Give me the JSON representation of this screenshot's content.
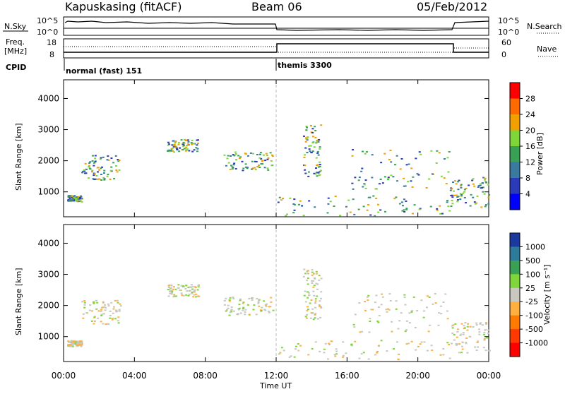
{
  "header": {
    "station": "Kapuskasing (fitACF)",
    "beam": "Beam 06",
    "date": "05/Feb/2012"
  },
  "summary": {
    "nsky_label": "N.Sky",
    "nsearch_label": "N.Search",
    "freq_label": "Freq.",
    "freq_unit": "[MHz]",
    "nave_label": "Nave",
    "cpid_label": "CPID",
    "nsky_ticks": [
      "10^5",
      "10^0"
    ],
    "nsearch_ticks": [
      "10^5",
      "10^0"
    ],
    "freq_ticks": [
      "18",
      "8"
    ],
    "nave_ticks": [
      "60",
      "0"
    ],
    "cpid_modes": [
      {
        "label": "normal (fast) 151",
        "start_hour": 0,
        "end_hour": 12
      },
      {
        "label": "themis 3300",
        "start_hour": 12,
        "end_hour": 24
      }
    ]
  },
  "x_axis": {
    "label": "Time UT",
    "ticks": [
      "00:00",
      "04:00",
      "08:00",
      "12:00",
      "16:00",
      "20:00",
      "00:00"
    ],
    "tick_hours": [
      0,
      4,
      8,
      12,
      16,
      20,
      24
    ]
  },
  "chart_data": [
    {
      "type": "heatmap",
      "name": "power",
      "ylabel": "Slant Range [km]",
      "y_ticks": [
        1000,
        2000,
        3000,
        4000
      ],
      "ylim": [
        200,
        4600
      ],
      "xlim_hours": [
        0,
        24
      ],
      "colorbar": {
        "label": "Power [dB]",
        "tick_labels": [
          "28",
          "24",
          "20",
          "16",
          "12",
          "8",
          "4"
        ],
        "colors": [
          "#ff0000",
          "#ff6a00",
          "#f0a000",
          "#7fd63a",
          "#3aa055",
          "#3a7aa0",
          "#2a3ab8",
          "#0000ff"
        ]
      }
    },
    {
      "type": "heatmap",
      "name": "velocity",
      "ylabel": "Slant Range [km]",
      "y_ticks": [
        1000,
        2000,
        3000,
        4000
      ],
      "ylim": [
        200,
        4600
      ],
      "xlim_hours": [
        0,
        24
      ],
      "colorbar": {
        "label": "Velocity [m s⁻¹]",
        "tick_labels": [
          "1000",
          "500",
          "100",
          "25",
          "-25",
          "-100",
          "-500",
          "-1000"
        ],
        "colors": [
          "#1a3aa0",
          "#2e7a9a",
          "#3aa055",
          "#7fd63a",
          "#c8c8c0",
          "#ffb040",
          "#ff7a00",
          "#ff3a00",
          "#ff0000"
        ]
      }
    }
  ]
}
